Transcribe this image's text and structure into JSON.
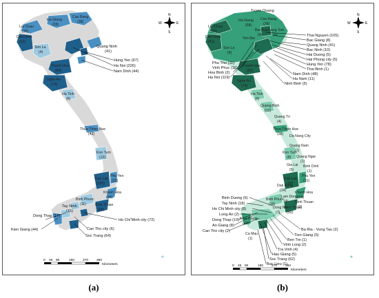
{
  "colors": {
    "land_gray": "#d9d9d9",
    "a_light": "#9ecae1",
    "a_mid": "#4a90c2",
    "a_dark": "#1f5f8b",
    "b_pale": "#c7e9dc",
    "b_light": "#7fcdb0",
    "b_mid": "#35a07a",
    "b_dark": "#1d6b50",
    "border": "#ffffff",
    "leader": "#000000"
  },
  "compass": {
    "n": "N",
    "s": "S",
    "e": "E",
    "w": "W"
  },
  "scale": {
    "ticks": [
      "0",
      "45",
      "90",
      "180",
      "270",
      "360"
    ],
    "unit": "Kilometers"
  },
  "panel_a": {
    "caption": "(a)",
    "labels": [
      {
        "text": "Cao Bang",
        "count": "(38)"
      },
      {
        "text": "Ha Giang",
        "count": "(28)"
      },
      {
        "text": "Lai Chau",
        "count": "(35)"
      },
      {
        "text": "Dien Bien",
        "count": "(61)"
      },
      {
        "text": "Son La",
        "count": "(4)"
      },
      {
        "text": "Quang Ninh",
        "count": "(41)"
      },
      {
        "text": "Hung Yen (67)",
        "count": ""
      },
      {
        "text": "Ha Noi (226)",
        "count": ""
      },
      {
        "text": "Nam Dinh (44)",
        "count": ""
      },
      {
        "text": "Thanh Hoa",
        "count": "(84)"
      },
      {
        "text": "Nghe An",
        "count": "(79)"
      },
      {
        "text": "Ha Tinh",
        "count": "(6)"
      },
      {
        "text": "Thua Thien Hue",
        "count": "(42)"
      },
      {
        "text": "Kon Tum",
        "count": "(12)"
      },
      {
        "text": "Phu Yen",
        "count": "(33)"
      },
      {
        "text": "Dak Lak",
        "count": "(105)"
      },
      {
        "text": "Khanh Hoa",
        "count": "(34)"
      },
      {
        "text": "Binh Phuoc",
        "count": "(11)"
      },
      {
        "text": "Binh Thuan",
        "count": "(66)"
      },
      {
        "text": "Dong Thap (17)",
        "count": ""
      },
      {
        "text": "Tay Ninh",
        "count": "(15)"
      },
      {
        "text": "Kien Giang (44)",
        "count": ""
      },
      {
        "text": "Ho Chi Minh city (72)",
        "count": ""
      },
      {
        "text": "Can Tho city (6)",
        "count": ""
      },
      {
        "text": "Soc Trang (64)",
        "count": ""
      }
    ]
  },
  "panel_b": {
    "caption": "(b)",
    "labels": [
      {
        "text": "Tuyen Quang"
      },
      {
        "text": "Ha Giang"
      },
      {
        "text": "(68)"
      },
      {
        "text": "Cao Bang"
      },
      {
        "text": "(38)"
      },
      {
        "text": "Lai Chau"
      },
      {
        "text": "(35)"
      },
      {
        "text": "Bac Kan"
      },
      {
        "text": "(4)"
      },
      {
        "text": "Lang Son"
      },
      {
        "text": "(5)"
      },
      {
        "text": "Dien Bien"
      },
      {
        "text": "(61)"
      },
      {
        "text": "Yen Bai"
      },
      {
        "text": "Son La"
      },
      {
        "text": "(4)"
      },
      {
        "text": "Thai Nguyen (105)"
      },
      {
        "text": "Bac Giang (8)"
      },
      {
        "text": "Quang Ninh (41)"
      },
      {
        "text": "Bac Ninh (10)"
      },
      {
        "text": "Hai Duong (5)"
      },
      {
        "text": "Hai Phong city (5)"
      },
      {
        "text": "Hung Yen (78)"
      },
      {
        "text": "Thai Binh (1)"
      },
      {
        "text": "Nam Dinh (48)"
      },
      {
        "text": "Ha Nam (11)"
      },
      {
        "text": "Ninh Binh (5)"
      },
      {
        "text": "Phu Tho (11)"
      },
      {
        "text": "Vinh Phuc (16)"
      },
      {
        "text": "Hoa Binh (2)"
      },
      {
        "text": "Ha Noi (119)"
      },
      {
        "text": "Thanh Hoa"
      },
      {
        "text": "(62)"
      },
      {
        "text": "Nghe An"
      },
      {
        "text": "(74)"
      },
      {
        "text": "Ha Tinh"
      },
      {
        "text": "(6)"
      },
      {
        "text": "Quang Binh"
      },
      {
        "text": "(12)"
      },
      {
        "text": "Quang Tri"
      },
      {
        "text": "(4)"
      },
      {
        "text": "Thua Thien Hue"
      },
      {
        "text": "(28)"
      },
      {
        "text": "Da Nang City"
      },
      {
        "text": "Quang Nam"
      },
      {
        "text": "(1)"
      },
      {
        "text": "Quang Ngai"
      },
      {
        "text": "(1)"
      },
      {
        "text": "Kon Tum"
      },
      {
        "text": "(8)"
      },
      {
        "text": "Binh Dinh"
      },
      {
        "text": "(1)"
      },
      {
        "text": "Gia Lai"
      },
      {
        "text": "(5)"
      },
      {
        "text": "Phu Yen"
      },
      {
        "text": "(31)"
      },
      {
        "text": "Dak Lak"
      },
      {
        "text": "(90)"
      },
      {
        "text": "Dak Nong"
      },
      {
        "text": "(14)"
      },
      {
        "text": "Khanh Hoa"
      },
      {
        "text": "(58)"
      },
      {
        "text": "Lam Dong"
      },
      {
        "text": "(4)"
      },
      {
        "text": "Ninh Thuan"
      },
      {
        "text": "(2)"
      },
      {
        "text": "Binh Duong (6)"
      },
      {
        "text": "Tay Ninh (18)"
      },
      {
        "text": "Ho Chi Minh city (8)"
      },
      {
        "text": "Long An (2)"
      },
      {
        "text": "Dong Thap (19)"
      },
      {
        "text": "An Giang (8)"
      },
      {
        "text": "Can Tho city (2)"
      },
      {
        "text": "Binh Phuoc"
      },
      {
        "text": "(19)"
      },
      {
        "text": "Dong Nai"
      },
      {
        "text": "(7)"
      },
      {
        "text": "Binh Thuan"
      },
      {
        "text": "(50)"
      },
      {
        "text": "Ba Ria - Vung Tau (2)"
      },
      {
        "text": "Tien Giang (5)"
      },
      {
        "text": "Ben Tre (1)"
      },
      {
        "text": "Vinh Long (2)"
      },
      {
        "text": "Tra Vinh (4)"
      },
      {
        "text": "Hau Giang (5)"
      },
      {
        "text": "Soc Trang (62)"
      },
      {
        "text": "Bac Lieu (1)"
      },
      {
        "text": "Kien Giang"
      },
      {
        "text": "(44)"
      },
      {
        "text": "Ca Mau"
      },
      {
        "text": "(1)"
      }
    ]
  }
}
